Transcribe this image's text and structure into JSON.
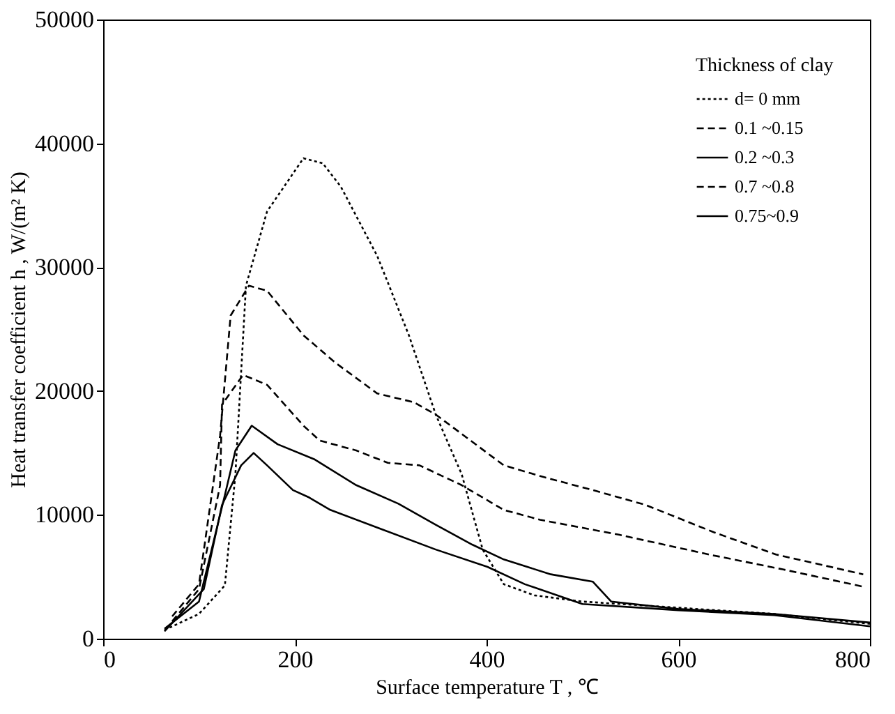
{
  "chart_data": {
    "type": "line",
    "xlabel": "Surface temperature   T , ℃",
    "ylabel": "Heat transfer coefficient   h , W/(m² K)",
    "legend_title": "Thickness of clay",
    "legend": "top right",
    "grid": false,
    "xlim": [
      0,
      800
    ],
    "ylim": [
      0,
      50000
    ],
    "xticks": [
      0,
      200,
      400,
      600,
      800
    ],
    "yticks": [
      0,
      10000,
      20000,
      30000,
      40000,
      50000
    ],
    "series": [
      {
        "name": "d= 0  mm",
        "color": "#000000",
        "line_style": "dotted",
        "x": [
          64,
          100,
          127,
          138,
          149,
          171,
          209,
          229,
          248,
          286,
          319,
          347,
          374,
          396,
          418,
          450,
          500,
          600,
          700,
          800
        ],
        "values": [
          700,
          2000,
          4300,
          13300,
          28500,
          34500,
          38800,
          38400,
          36500,
          30900,
          24500,
          18100,
          13300,
          7200,
          4400,
          3500,
          3000,
          2500,
          2000,
          1200
        ]
      },
      {
        "name": "0.1 ~0.15",
        "color": "#000000",
        "line_style": "dashed",
        "x": [
          72,
          100,
          122,
          133,
          152,
          171,
          209,
          242,
          286,
          324,
          347,
          373,
          418,
          462,
          511,
          566,
          637,
          702,
          793
        ],
        "values": [
          1800,
          4400,
          16400,
          26100,
          28500,
          28100,
          24500,
          22300,
          19800,
          19100,
          18100,
          16600,
          14000,
          13000,
          12000,
          10800,
          8600,
          6800,
          5200
        ]
      },
      {
        "name": "0.2 ~0.3",
        "color": "#000000",
        "line_style": "solid",
        "x": [
          64,
          100,
          127,
          138,
          155,
          182,
          220,
          264,
          308,
          347,
          385,
          418,
          467,
          511,
          530,
          600,
          700,
          800
        ],
        "values": [
          800,
          3000,
          11600,
          15200,
          17200,
          15700,
          14500,
          12400,
          10900,
          9200,
          7600,
          6400,
          5200,
          4600,
          3000,
          2400,
          2000,
          1300
        ]
      },
      {
        "name": "0.7 ~0.8",
        "color": "#000000",
        "line_style": "dashed",
        "x": [
          72,
          100,
          122,
          124,
          146,
          171,
          209,
          226,
          264,
          297,
          330,
          374,
          418,
          456,
          538,
          632,
          709,
          793
        ],
        "values": [
          1400,
          4000,
          12400,
          18900,
          21300,
          20500,
          17200,
          16000,
          15200,
          14200,
          14000,
          12400,
          10400,
          9600,
          8400,
          6800,
          5600,
          4200
        ]
      },
      {
        "name": "0.75~0.9",
        "color": "#000000",
        "line_style": "solid",
        "x": [
          64,
          105,
          124,
          144,
          157,
          171,
          198,
          215,
          237,
          292,
          347,
          401,
          440,
          500,
          600,
          700,
          800
        ],
        "values": [
          600,
          4000,
          10800,
          14000,
          15000,
          14000,
          12000,
          11400,
          10400,
          8800,
          7200,
          5800,
          4400,
          2800,
          2300,
          1900,
          1000
        ]
      }
    ]
  }
}
